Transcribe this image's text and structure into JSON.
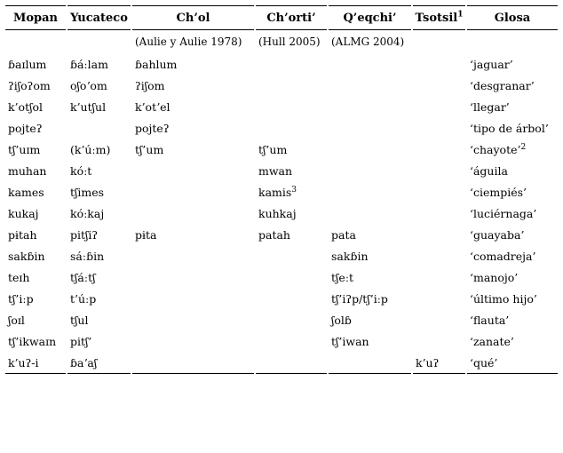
{
  "columns": [
    {
      "label": "Mopan"
    },
    {
      "label": "Yucateco"
    },
    {
      "label": "Ch’ol"
    },
    {
      "label": "Ch’orti’"
    },
    {
      "label": "Q’eqchi’"
    },
    {
      "label": "Tsotsil",
      "sup": "1"
    },
    {
      "label": "Glosa"
    }
  ],
  "sources": [
    "",
    "",
    "(Aulie y Aulie 1978)",
    "(Hull 2005)",
    "(ALMG 2004)",
    "",
    ""
  ],
  "rows": [
    {
      "c": [
        "ɓaɪlum",
        "ɓáːlam",
        "ɓahlum",
        "",
        "",
        "",
        "‘jaguar’"
      ]
    },
    {
      "c": [
        "ʔiʃoʔom",
        "oʃoʼom",
        "ʔiʃom",
        "",
        "",
        "",
        "‘desgranar’"
      ]
    },
    {
      "c": [
        "k’otʃol",
        "k’utʃul",
        "k’otʼel",
        "",
        "",
        "",
        "‘llegar’"
      ]
    },
    {
      "c": [
        "pojteʔ",
        "",
        "pojteʔ",
        "",
        "",
        "",
        "‘tipo de árbol’"
      ]
    },
    {
      "c": [
        "tʃ’uɪm",
        "(k’úːm)",
        "tʃ’um",
        "tʃ’um",
        "",
        "",
        "‘chayote’"
      ],
      "sup": {
        "6": "2"
      }
    },
    {
      "c": [
        "muhan",
        "kóːt",
        "",
        "mwan",
        "",
        "",
        "‘águila"
      ]
    },
    {
      "c": [
        "kames",
        "tʃimes",
        "",
        "kamis",
        "",
        "",
        "‘ciempiés’"
      ],
      "sup": {
        "3": "3"
      }
    },
    {
      "c": [
        "kukaj",
        "kóːkaj",
        "",
        "kuhkaj",
        "",
        "",
        "‘luciérnaga’"
      ]
    },
    {
      "c": [
        "pɨtah",
        "pitʃiʔ",
        "pɨta",
        "patah",
        "pata",
        "",
        "‘guayaba’"
      ]
    },
    {
      "c": [
        "sakɓin",
        "sáːɓin",
        "",
        "",
        "sakɓin",
        "",
        "‘comadreja’"
      ]
    },
    {
      "c": [
        "teɪh",
        "tʃáːtʃ",
        "",
        "",
        "tʃeːt",
        "",
        "‘manojo’"
      ]
    },
    {
      "c": [
        "tʃ’iːp",
        "t’úːp",
        "",
        "",
        "tʃ’iʔp/tʃ’iːp",
        "",
        "‘último hijo’"
      ]
    },
    {
      "c": [
        "ʃoɪl",
        "tʃul",
        "",
        "",
        "ʃolɓ",
        "",
        "‘flauta’"
      ]
    },
    {
      "c": [
        "tʃ’ikwaɪn",
        "pitʃ’",
        "",
        "",
        "tʃ’iwan",
        "",
        "‘zanate’"
      ]
    },
    {
      "c": [
        "k’uʔ-i",
        "ɓaʼaʃ",
        "",
        "",
        "",
        "k’uʔ",
        "‘qué’"
      ]
    }
  ]
}
